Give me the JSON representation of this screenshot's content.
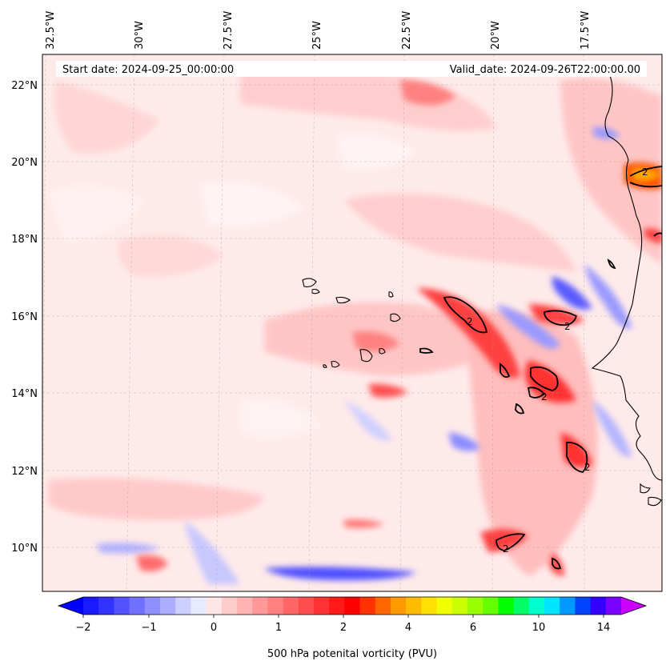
{
  "map": {
    "start_label": "Start date: 2024-09-25_00:00:00",
    "valid_label": "Valid_date: 2024-09-26T22:00:00.00",
    "lon_labels": [
      "32.5°W",
      "30°W",
      "27.5°W",
      "25°W",
      "22.5°W",
      "20°W",
      "17.5°W"
    ],
    "lat_labels": [
      "22°N",
      "20°N",
      "18°N",
      "16°N",
      "14°N",
      "12°N",
      "10°N"
    ],
    "contour_label": "2"
  },
  "colorbar": {
    "tick_labels": [
      "−2",
      "−1",
      "0",
      "1",
      "2",
      "4",
      "6",
      "10",
      "14"
    ],
    "label": "500 hPa potenital vorticity (PVU)",
    "colors": [
      "#1a1aff",
      "#3333ff",
      "#5252ff",
      "#7070ff",
      "#8f8fff",
      "#adadff",
      "#cccfff",
      "#e8ebff",
      "#ffe6e6",
      "#ffcccc",
      "#ffb3b3",
      "#ff9999",
      "#ff8080",
      "#ff6666",
      "#ff4d4d",
      "#ff3333",
      "#ff1a1a",
      "#ff0000",
      "#ff3300",
      "#ff6600",
      "#ff9900",
      "#ffbb00",
      "#ffe000",
      "#f2ff00",
      "#ccff00",
      "#99ff00",
      "#66ff00",
      "#00ff00",
      "#00ff66",
      "#00ffcc",
      "#00e5ff",
      "#0099ff",
      "#0044ff",
      "#3300ff",
      "#7a00ff"
    ],
    "under_color": "#0000ff",
    "over_color": "#cc00ff"
  },
  "colors": {
    "background_field": "#ffeaea",
    "coast": "#000000"
  }
}
